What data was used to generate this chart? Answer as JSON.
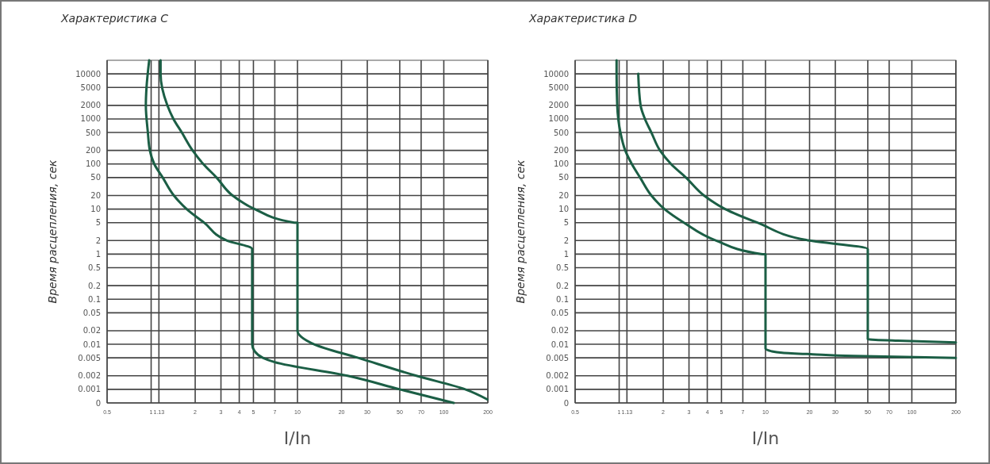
{
  "chart_data": [
    {
      "type": "line",
      "title": "Характеристика C",
      "xlabel": "I/In",
      "ylabel": "Время расцепления, сек",
      "log": "xy",
      "grid": true,
      "xlim": [
        0.5,
        200
      ],
      "ylim": [
        0.0005,
        20000
      ],
      "xticks": [
        0.5,
        1,
        1.13,
        2,
        3,
        4,
        5,
        7,
        10,
        20,
        30,
        50,
        70,
        100,
        200
      ],
      "yticks": [
        {
          "value": 0.0005,
          "label": "0"
        },
        0.001,
        0.002,
        0.005,
        0.01,
        0.02,
        0.05,
        0.1,
        0.2,
        0.5,
        1,
        2,
        5,
        10,
        20,
        50,
        100,
        200,
        500,
        1000,
        2000,
        5000,
        10000
      ],
      "series": [
        {
          "color": "#1b5e45",
          "x": [
            0.97,
            0.93,
            0.92,
            0.95,
            0.98,
            1.05,
            1.2,
            1.43,
            1.75,
            2.3,
            3.3,
            4.9,
            4.9,
            5.1,
            5.8,
            7,
            22,
            50,
            117
          ],
          "values": [
            20000,
            5000,
            2000,
            500,
            200,
            100,
            50,
            20,
            10,
            5,
            2,
            1.3,
            0.01,
            0.007,
            0.005,
            0.004,
            0.002,
            0.001,
            0.0005
          ]
        },
        {
          "color": "#1b5e45",
          "x": [
            1.16,
            1.16,
            1.29,
            1.42,
            1.62,
            1.92,
            2.27,
            2.8,
            3.6,
            5.1,
            9.5,
            10,
            10,
            13,
            26,
            65,
            140,
            198
          ],
          "values": [
            20000,
            10000,
            2000,
            1000,
            500,
            200,
            100,
            50,
            20,
            10,
            5,
            5,
            0.02,
            0.01,
            0.005,
            0.002,
            0.001,
            0.0006
          ]
        }
      ]
    },
    {
      "type": "line",
      "title": "Характеристика D",
      "xlabel": "I/In",
      "ylabel": "Время расцепления, сек",
      "log": "xy",
      "grid": true,
      "xlim": [
        0.5,
        200
      ],
      "ylim": [
        0.0005,
        20000
      ],
      "xticks": [
        0.5,
        1,
        1.13,
        2,
        3,
        4,
        5,
        7,
        10,
        20,
        30,
        50,
        70,
        100,
        200
      ],
      "yticks": [
        {
          "value": 0.0005,
          "label": "0"
        },
        0.001,
        0.002,
        0.005,
        0.01,
        0.02,
        0.05,
        0.1,
        0.2,
        0.5,
        1,
        2,
        5,
        10,
        20,
        50,
        100,
        200,
        500,
        1000,
        2000,
        5000,
        10000
      ],
      "series": [
        {
          "color": "#1b5e45",
          "x": [
            0.96,
            0.96,
            0.97,
            1.02,
            1.1,
            1.22,
            1.39,
            1.66,
            2.04,
            2.77,
            4.6,
            9.5,
            10,
            10,
            11,
            13,
            21,
            40,
            200
          ],
          "values": [
            20000,
            10000,
            2000,
            500,
            200,
            100,
            50,
            20,
            10,
            5,
            2,
            1,
            1,
            0.008,
            0.007,
            0.0065,
            0.006,
            0.0055,
            0.005
          ]
        },
        {
          "color": "#1b5e45",
          "x": [
            1.35,
            1.4,
            1.5,
            1.66,
            1.9,
            2.26,
            2.86,
            3.8,
            5.3,
            8.8,
            20,
            50,
            50,
            80,
            200
          ],
          "values": [
            10000,
            2000,
            1000,
            500,
            200,
            100,
            50,
            20,
            10,
            5,
            2,
            1.3,
            0.013,
            0.012,
            0.011
          ]
        }
      ]
    }
  ]
}
